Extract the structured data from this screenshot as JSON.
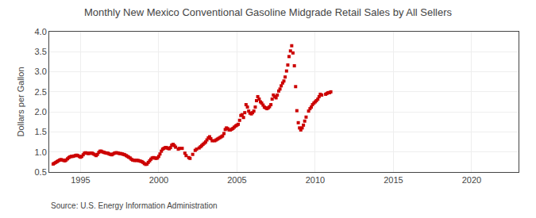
{
  "chart_data": {
    "type": "scatter",
    "title": "Monthly New Mexico Conventional Gasoline Midgrade Retail Sales by All Sellers",
    "ylabel": "Dollars per Gallon",
    "annotations": [
      "Source: U.S. Energy Information Administration"
    ],
    "color": "#cc0000",
    "marker": "square",
    "grid": true,
    "xlim": [
      1993.0,
      2023.0
    ],
    "ylim": [
      0.5,
      4.0
    ],
    "xticks": [
      1995,
      2000,
      2005,
      2010,
      2015,
      2020
    ],
    "yticks": [
      0.5,
      {
        "value": 1.0,
        "label": "1.0"
      },
      1.5,
      {
        "value": 2.0,
        "label": "2.0"
      },
      2.5,
      {
        "value": 3.0,
        "label": "3.0"
      },
      3.5,
      {
        "value": 4.0,
        "label": "4.0"
      }
    ],
    "x": [
      1993.25,
      1993.33,
      1993.42,
      1993.5,
      1993.58,
      1993.67,
      1993.75,
      1993.83,
      1993.92,
      1994.0,
      1994.08,
      1994.17,
      1994.25,
      1994.33,
      1994.42,
      1994.5,
      1994.58,
      1994.67,
      1994.75,
      1994.83,
      1994.92,
      1995.0,
      1995.08,
      1995.17,
      1995.25,
      1995.33,
      1995.42,
      1995.5,
      1995.58,
      1995.67,
      1995.75,
      1995.83,
      1995.92,
      1996.0,
      1996.08,
      1996.17,
      1996.25,
      1996.33,
      1996.42,
      1996.5,
      1996.58,
      1996.67,
      1996.75,
      1996.83,
      1996.92,
      1997.0,
      1997.08,
      1997.17,
      1997.25,
      1997.33,
      1997.42,
      1997.5,
      1997.58,
      1997.67,
      1997.75,
      1997.83,
      1997.92,
      1998.0,
      1998.08,
      1998.17,
      1998.25,
      1998.33,
      1998.42,
      1998.5,
      1998.58,
      1998.67,
      1998.75,
      1998.83,
      1998.92,
      1999.0,
      1999.08,
      1999.17,
      1999.25,
      1999.33,
      1999.42,
      1999.5,
      1999.58,
      1999.67,
      1999.75,
      1999.83,
      1999.92,
      2000.0,
      2000.08,
      2000.17,
      2000.25,
      2000.33,
      2000.42,
      2000.5,
      2000.58,
      2000.67,
      2000.75,
      2000.83,
      2000.92,
      2001.0,
      2001.08,
      2001.25,
      2001.33,
      2001.5,
      2001.67,
      2001.75,
      2001.92,
      2002.0,
      2002.17,
      2002.33,
      2002.42,
      2002.58,
      2002.67,
      2002.75,
      2002.83,
      2002.92,
      2003.0,
      2003.08,
      2003.17,
      2003.25,
      2003.33,
      2003.42,
      2003.58,
      2003.67,
      2003.75,
      2003.83,
      2003.92,
      2004.0,
      2004.08,
      2004.17,
      2004.25,
      2004.33,
      2004.42,
      2004.5,
      2004.58,
      2004.67,
      2004.75,
      2004.83,
      2004.92,
      2005.0,
      2005.08,
      2005.17,
      2005.25,
      2005.33,
      2005.42,
      2005.5,
      2005.58,
      2005.67,
      2005.75,
      2005.83,
      2005.92,
      2006.0,
      2006.08,
      2006.17,
      2006.25,
      2006.33,
      2006.42,
      2006.5,
      2006.58,
      2006.67,
      2006.75,
      2006.83,
      2006.92,
      2007.0,
      2007.08,
      2007.17,
      2007.25,
      2007.33,
      2007.42,
      2007.5,
      2007.58,
      2007.67,
      2007.75,
      2007.83,
      2007.92,
      2008.0,
      2008.08,
      2008.17,
      2008.25,
      2008.33,
      2008.42,
      2008.5,
      2008.58,
      2008.67,
      2008.75,
      2008.83,
      2008.92,
      2009.0,
      2009.08,
      2009.17,
      2009.25,
      2009.33,
      2009.42,
      2009.58,
      2009.67,
      2009.75,
      2009.83,
      2009.92,
      2010.0,
      2010.08,
      2010.17,
      2010.25,
      2010.33,
      2010.42,
      2010.67,
      2010.75,
      2010.83,
      2010.92,
      2011.0
    ],
    "values": [
      0.7,
      0.72,
      0.74,
      0.76,
      0.78,
      0.8,
      0.81,
      0.8,
      0.79,
      0.78,
      0.8,
      0.83,
      0.86,
      0.88,
      0.89,
      0.89,
      0.9,
      0.91,
      0.92,
      0.91,
      0.89,
      0.87,
      0.89,
      0.93,
      0.97,
      0.98,
      0.97,
      0.96,
      0.97,
      0.97,
      0.97,
      0.95,
      0.93,
      0.91,
      0.94,
      0.99,
      1.02,
      1.02,
      1.0,
      0.99,
      0.98,
      0.97,
      0.97,
      0.95,
      0.94,
      0.93,
      0.95,
      0.97,
      0.98,
      0.98,
      0.97,
      0.96,
      0.96,
      0.95,
      0.94,
      0.93,
      0.91,
      0.89,
      0.87,
      0.85,
      0.82,
      0.8,
      0.79,
      0.79,
      0.79,
      0.79,
      0.78,
      0.77,
      0.76,
      0.74,
      0.71,
      0.69,
      0.7,
      0.74,
      0.78,
      0.82,
      0.85,
      0.86,
      0.85,
      0.84,
      0.85,
      0.89,
      0.95,
      1.02,
      1.07,
      1.09,
      1.11,
      1.11,
      1.09,
      1.08,
      1.11,
      1.17,
      1.19,
      1.16,
      1.12,
      1.07,
      1.09,
      1.09,
      0.97,
      0.91,
      0.86,
      0.84,
      0.94,
      1.04,
      1.07,
      1.1,
      1.13,
      1.16,
      1.19,
      1.22,
      1.25,
      1.3,
      1.35,
      1.38,
      1.33,
      1.28,
      1.28,
      1.3,
      1.32,
      1.34,
      1.36,
      1.38,
      1.4,
      1.46,
      1.56,
      1.6,
      1.58,
      1.55,
      1.55,
      1.57,
      1.59,
      1.62,
      1.65,
      1.67,
      1.69,
      1.79,
      1.91,
      1.93,
      1.86,
      1.98,
      2.18,
      2.12,
      2.02,
      1.97,
      1.95,
      1.98,
      2.02,
      2.12,
      2.28,
      2.38,
      2.32,
      2.25,
      2.22,
      2.17,
      2.12,
      2.1,
      2.08,
      2.1,
      2.13,
      2.18,
      2.32,
      2.42,
      2.38,
      2.35,
      2.42,
      2.52,
      2.57,
      2.65,
      2.72,
      2.77,
      2.87,
      3.02,
      3.17,
      3.38,
      3.52,
      3.65,
      3.47,
      3.15,
      2.63,
      2.03,
      1.73,
      1.6,
      1.55,
      1.6,
      1.67,
      1.77,
      1.87,
      2.02,
      2.08,
      2.12,
      2.18,
      2.22,
      2.25,
      2.28,
      2.32,
      2.38,
      2.44,
      2.42,
      2.44,
      2.46,
      2.48,
      2.48,
      2.5
    ]
  }
}
